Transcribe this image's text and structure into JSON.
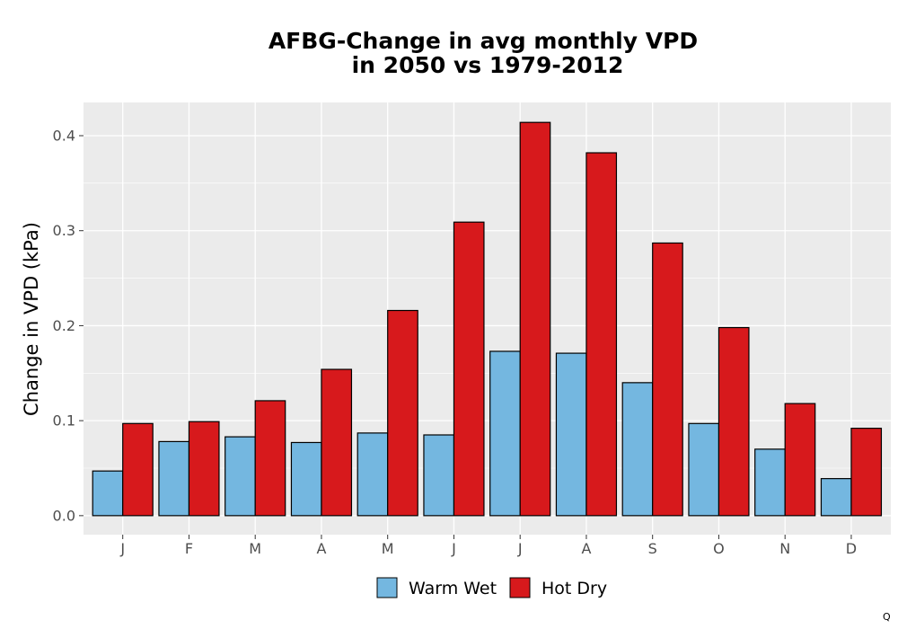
{
  "chart_data": {
    "type": "bar",
    "title_lines": [
      "AFBG-Change in avg monthly VPD",
      "in 2050 vs 1979-2012"
    ],
    "xlabel": "",
    "ylabel": "Change in VPD (kPa)",
    "categories": [
      "J",
      "F",
      "M",
      "A",
      "M",
      "J",
      "J",
      "A",
      "S",
      "O",
      "N",
      "D"
    ],
    "series": [
      {
        "name": "Warm Wet",
        "color": "#74b7e0",
        "values": [
          0.047,
          0.078,
          0.083,
          0.077,
          0.087,
          0.085,
          0.173,
          0.171,
          0.14,
          0.097,
          0.07,
          0.039
        ]
      },
      {
        "name": "Hot Dry",
        "color": "#d7191c",
        "values": [
          0.097,
          0.099,
          0.121,
          0.154,
          0.216,
          0.309,
          0.414,
          0.382,
          0.287,
          0.198,
          0.118,
          0.092
        ]
      }
    ],
    "ylim": [
      -0.02,
      0.435
    ],
    "yticks": [
      0.0,
      0.1,
      0.2,
      0.3,
      0.4
    ],
    "ytick_labels": [
      "0.0",
      "0.1",
      "0.2",
      "0.3",
      "0.4"
    ],
    "grid": true,
    "legend_position": "bottom"
  },
  "corner_mark": "Q"
}
